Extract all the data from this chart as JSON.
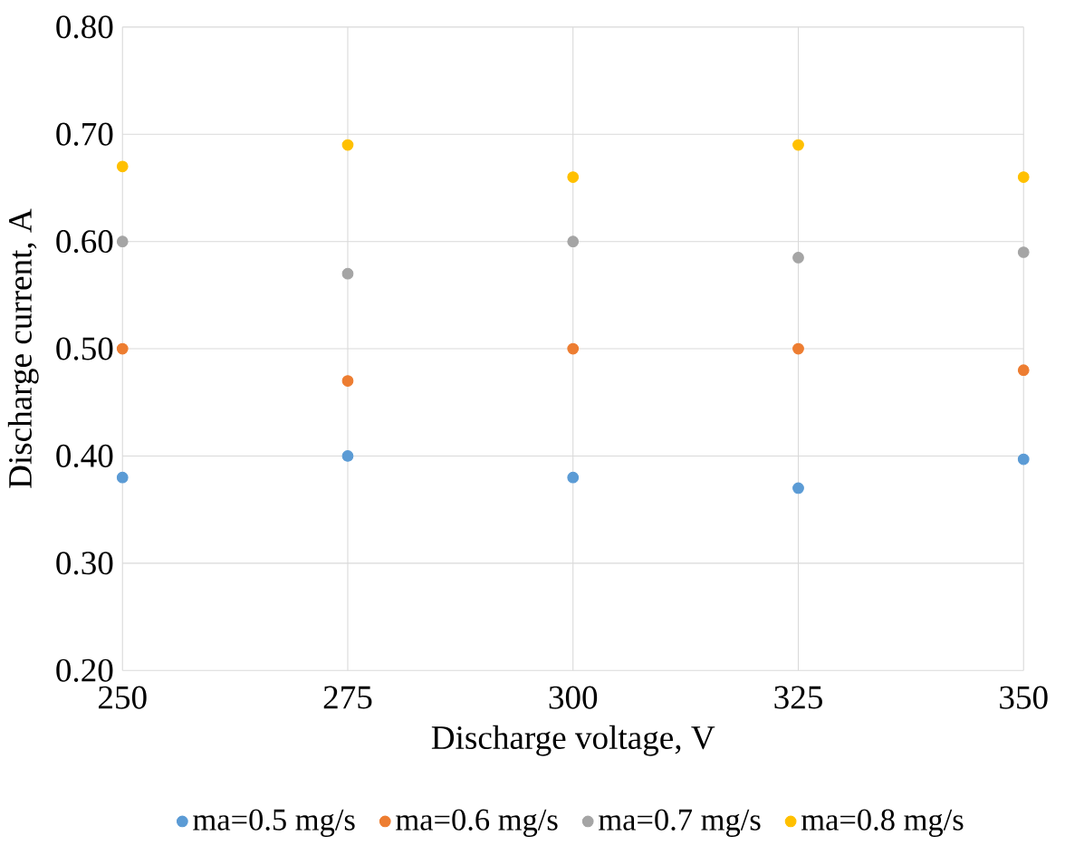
{
  "chart_data": {
    "type": "scatter",
    "xlabel": "Discharge voltage, V",
    "ylabel": "Discharge current,  A",
    "x": [
      250,
      275,
      300,
      325,
      350
    ],
    "series": [
      {
        "name": "ma=0.5 mg/s",
        "color": "#5b9bd5",
        "values": [
          0.38,
          0.4,
          0.38,
          0.37,
          0.397
        ]
      },
      {
        "name": "ma=0.6 mg/s",
        "color": "#ed7d31",
        "values": [
          0.5,
          0.47,
          0.5,
          0.5,
          0.48
        ]
      },
      {
        "name": "ma=0.7 mg/s",
        "color": "#a5a5a5",
        "values": [
          0.6,
          0.57,
          0.6,
          0.585,
          0.59
        ]
      },
      {
        "name": "ma=0.8 mg/s",
        "color": "#ffc000",
        "values": [
          0.67,
          0.69,
          0.66,
          0.69,
          0.66
        ]
      }
    ],
    "xlim": [
      250,
      350
    ],
    "xticks": [
      250,
      275,
      300,
      325,
      350
    ],
    "ylim": [
      0.2,
      0.8
    ],
    "yticks": [
      {
        "value": 0.2,
        "label": "0.20"
      },
      {
        "value": 0.3,
        "label": "0.30"
      },
      {
        "value": 0.4,
        "label": "0.40"
      },
      {
        "value": 0.5,
        "label": "0.50"
      },
      {
        "value": 0.6,
        "label": "0.60"
      },
      {
        "value": 0.7,
        "label": "0.70"
      },
      {
        "value": 0.8,
        "label": "0.80"
      }
    ],
    "grid": true,
    "legend": "bottom",
    "marker": "circle"
  }
}
